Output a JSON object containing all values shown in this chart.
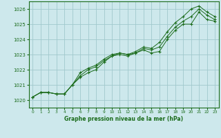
{
  "xlabel": "Graphe pression niveau de la mer (hPa)",
  "bg_color": "#cde8ec",
  "grid_color": "#a0c8cc",
  "line_color": "#1a6b1a",
  "ylim": [
    1019.5,
    1026.5
  ],
  "xlim": [
    -0.5,
    23.5
  ],
  "yticks": [
    1020,
    1021,
    1022,
    1023,
    1024,
    1025,
    1026
  ],
  "xticks": [
    0,
    1,
    2,
    3,
    4,
    5,
    6,
    7,
    8,
    9,
    10,
    11,
    12,
    13,
    14,
    15,
    16,
    17,
    18,
    19,
    20,
    21,
    22,
    23
  ],
  "series": [
    [
      1020.2,
      1020.5,
      1020.5,
      1020.4,
      1020.4,
      1021.0,
      1021.5,
      1021.8,
      1022.0,
      1022.5,
      1022.9,
      1023.0,
      1022.9,
      1023.1,
      1023.3,
      1023.1,
      1023.2,
      1024.0,
      1024.6,
      1025.0,
      1025.0,
      1025.8,
      1025.3,
      1025.2
    ],
    [
      1020.2,
      1020.5,
      1020.5,
      1020.4,
      1020.4,
      1021.0,
      1021.8,
      1022.1,
      1022.3,
      1022.7,
      1023.0,
      1023.1,
      1023.0,
      1023.2,
      1023.5,
      1023.4,
      1023.8,
      1024.5,
      1025.1,
      1025.5,
      1026.0,
      1026.2,
      1025.8,
      1025.5
    ],
    [
      1020.2,
      1020.5,
      1020.5,
      1020.4,
      1020.4,
      1021.0,
      1021.6,
      1022.0,
      1022.2,
      1022.6,
      1022.9,
      1023.1,
      1023.0,
      1023.1,
      1023.4,
      1023.3,
      1023.5,
      1024.2,
      1024.8,
      1025.2,
      1025.5,
      1026.0,
      1025.6,
      1025.3
    ]
  ]
}
